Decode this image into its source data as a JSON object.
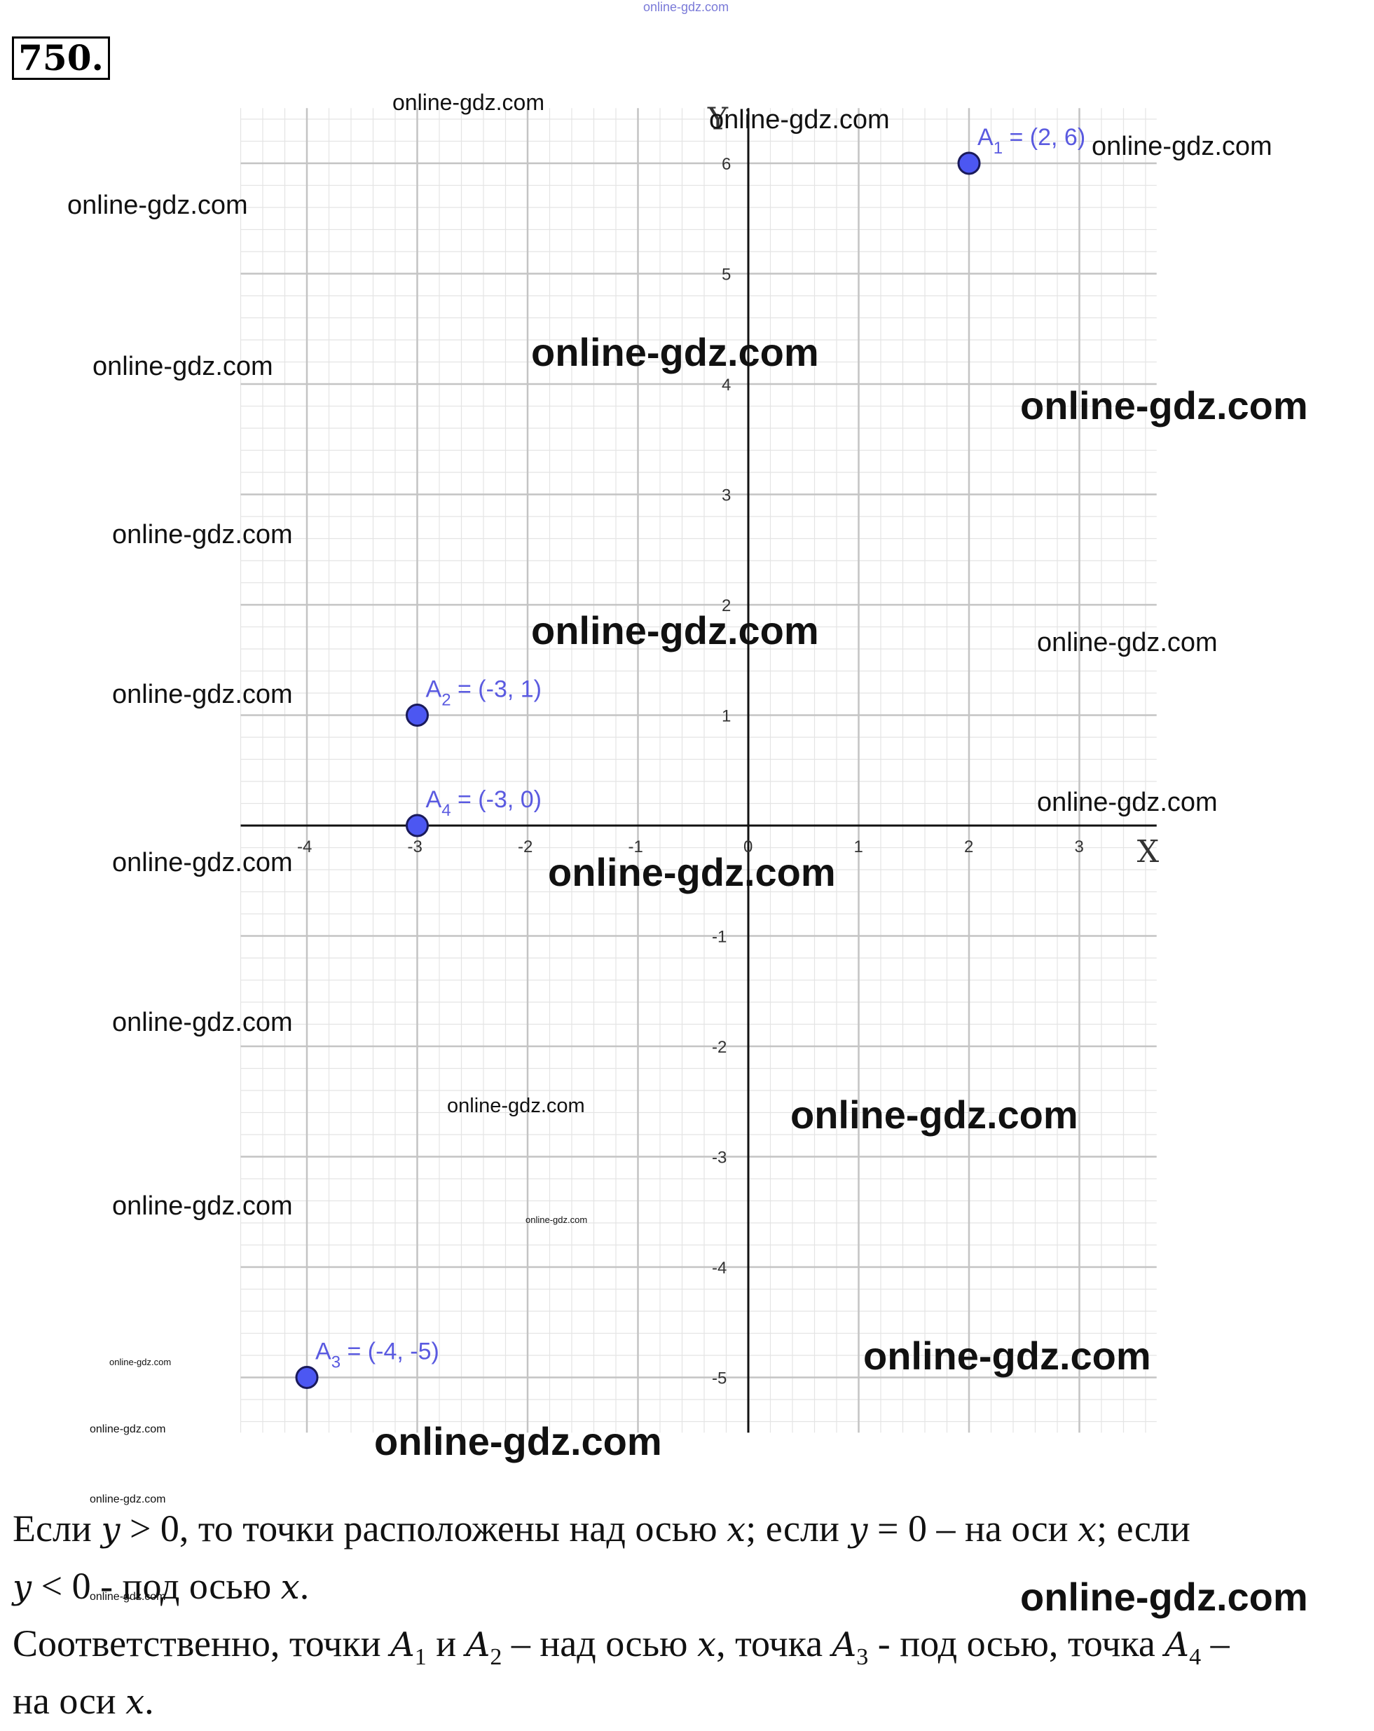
{
  "problem": {
    "number": "750."
  },
  "chart_data": {
    "type": "scatter",
    "x_axis_name": "X",
    "y_axis_name": "Y",
    "xlim": [
      -4.6,
      3.7
    ],
    "ylim": [
      -5.5,
      6.5
    ],
    "x_ticks": [
      "-4",
      "-3",
      "-2",
      "-1",
      "0",
      "1",
      "2",
      "3"
    ],
    "y_ticks": [
      "-5",
      "-4",
      "-3",
      "-2",
      "-1",
      "1",
      "2",
      "3",
      "4",
      "5",
      "6"
    ],
    "grid": true,
    "point_color": "#4c57f2",
    "points": [
      {
        "name": "A",
        "index": "1",
        "coords": "= (2, 6)",
        "x": 2,
        "y": 6
      },
      {
        "name": "A",
        "index": "2",
        "coords": "= (-3, 1)",
        "x": -3,
        "y": 1
      },
      {
        "name": "A",
        "index": "3",
        "coords": "= (-4, -5)",
        "x": -4,
        "y": -5
      },
      {
        "name": "A",
        "index": "4",
        "coords": "= (-3, 0)",
        "x": -3,
        "y": 0
      }
    ]
  },
  "watermark": "online-gdz.com",
  "text": {
    "line1_a": "Если ",
    "line1_y1": "y",
    "line1_b": " > 0, то точки расположены над осью ",
    "line1_x1": "x",
    "line1_c": "; если ",
    "line1_y2": "y",
    "line1_d": " = 0 – на оси ",
    "line1_x2": "x",
    "line1_e": "; если",
    "line2_y": "y",
    "line2_a": " < 0 - под осью ",
    "line2_x": "x",
    "line2_b": ".",
    "line3_a": "Соответственно, точки ",
    "line3_A1": "A",
    "line3_A1_sub": "1",
    "line3_b": " и ",
    "line3_A2": "A",
    "line3_A2_sub": "2",
    "line3_c": " – над осью ",
    "line3_x": "x",
    "line3_d": ", точка ",
    "line3_A3": "A",
    "line3_A3_sub": "3",
    "line3_e": " - под осью, точка ",
    "line3_A4": "A",
    "line3_A4_sub": "4",
    "line3_f": " –",
    "line4_a": "на оси ",
    "line4_x": "x",
    "line4_b": "."
  }
}
